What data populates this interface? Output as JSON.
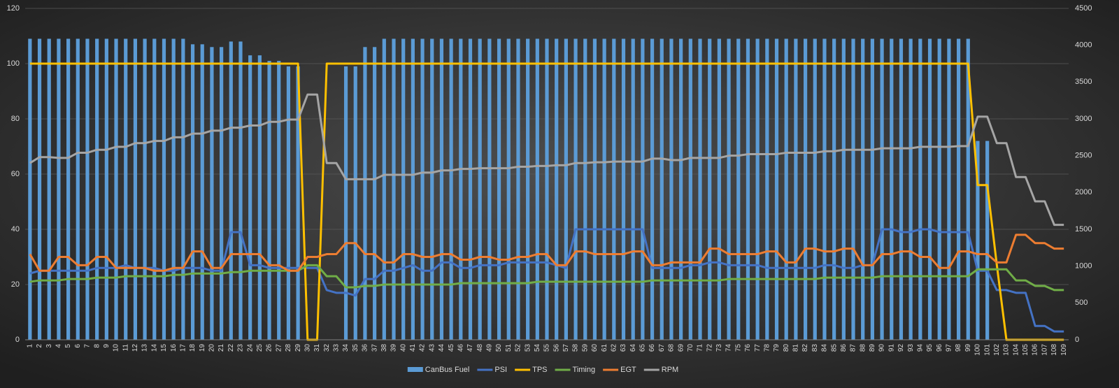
{
  "chart_data": {
    "type": "combo",
    "categories": [
      1,
      2,
      3,
      4,
      5,
      6,
      7,
      8,
      9,
      10,
      11,
      12,
      13,
      14,
      15,
      16,
      17,
      18,
      19,
      20,
      21,
      22,
      23,
      24,
      25,
      26,
      27,
      28,
      29,
      30,
      31,
      32,
      33,
      34,
      35,
      36,
      37,
      38,
      39,
      40,
      41,
      42,
      43,
      44,
      45,
      46,
      47,
      48,
      49,
      50,
      51,
      52,
      53,
      54,
      55,
      56,
      57,
      58,
      59,
      60,
      61,
      62,
      63,
      64,
      65,
      66,
      67,
      68,
      69,
      70,
      71,
      72,
      73,
      74,
      75,
      76,
      77,
      78,
      79,
      80,
      81,
      82,
      83,
      84,
      85,
      86,
      87,
      88,
      89,
      90,
      91,
      92,
      93,
      94,
      95,
      96,
      97,
      98,
      99,
      100,
      101,
      102,
      103,
      104,
      105,
      106,
      107,
      108,
      109
    ],
    "ylim": [
      0,
      120
    ],
    "yticks": [
      0,
      20,
      40,
      60,
      80,
      100,
      120
    ],
    "y2lim": [
      0,
      4500
    ],
    "y2ticks": [
      0,
      500,
      1000,
      1500,
      2000,
      2500,
      3000,
      3500,
      4000,
      4500
    ],
    "grid": true,
    "legend": "bottom",
    "series": [
      {
        "name": "CanBus Fuel",
        "type": "bar",
        "color": "#5b9bd5",
        "values": [
          109,
          109,
          109,
          109,
          109,
          109,
          109,
          109,
          109,
          109,
          109,
          109,
          109,
          109,
          109,
          109,
          109,
          107,
          107,
          106,
          106,
          108,
          108,
          103,
          103,
          101,
          101,
          99,
          99,
          0,
          0,
          0,
          0,
          99,
          99,
          106,
          106,
          109,
          109,
          109,
          109,
          109,
          109,
          109,
          109,
          109,
          109,
          109,
          109,
          109,
          109,
          109,
          109,
          109,
          109,
          109,
          109,
          109,
          109,
          109,
          109,
          109,
          109,
          109,
          109,
          109,
          109,
          109,
          109,
          109,
          109,
          109,
          109,
          109,
          109,
          109,
          109,
          109,
          109,
          109,
          109,
          109,
          109,
          109,
          109,
          109,
          109,
          109,
          109,
          109,
          109,
          109,
          109,
          109,
          109,
          109,
          109,
          109,
          109,
          72,
          72,
          0,
          0,
          0,
          0,
          0,
          0,
          0,
          0
        ]
      },
      {
        "name": "PSI",
        "type": "line",
        "color": "#4472c4",
        "values": [
          24,
          25,
          25,
          25,
          25,
          25,
          25,
          26,
          26,
          26,
          27,
          26,
          26,
          26,
          25,
          25,
          26,
          26,
          26,
          25,
          25,
          39,
          39,
          27,
          27,
          26,
          26,
          26,
          26,
          26,
          26,
          18,
          17,
          17,
          16,
          22,
          22,
          25,
          25,
          26,
          27,
          25,
          25,
          28,
          28,
          26,
          26,
          27,
          27,
          27,
          28,
          28,
          28,
          28,
          28,
          27,
          26,
          40,
          40,
          40,
          40,
          40,
          40,
          40,
          40,
          26,
          26,
          26,
          26,
          27,
          27,
          28,
          28,
          27,
          27,
          27,
          27,
          26,
          26,
          26,
          26,
          26,
          26,
          27,
          27,
          26,
          26,
          27,
          27,
          40,
          40,
          39,
          39,
          40,
          40,
          39,
          39,
          39,
          39,
          25,
          25,
          18,
          18,
          17,
          17,
          5,
          5,
          3,
          3
        ]
      },
      {
        "name": "TPS",
        "type": "line",
        "color": "#ffc000",
        "values": [
          100,
          100,
          100,
          100,
          100,
          100,
          100,
          100,
          100,
          100,
          100,
          100,
          100,
          100,
          100,
          100,
          100,
          100,
          100,
          100,
          100,
          100,
          100,
          100,
          100,
          100,
          100,
          100,
          100,
          0,
          0,
          100,
          100,
          100,
          100,
          100,
          100,
          100,
          100,
          100,
          100,
          100,
          100,
          100,
          100,
          100,
          100,
          100,
          100,
          100,
          100,
          100,
          100,
          100,
          100,
          100,
          100,
          100,
          100,
          100,
          100,
          100,
          100,
          100,
          100,
          100,
          100,
          100,
          100,
          100,
          100,
          100,
          100,
          100,
          100,
          100,
          100,
          100,
          100,
          100,
          100,
          100,
          100,
          100,
          100,
          100,
          100,
          100,
          100,
          100,
          100,
          100,
          100,
          100,
          100,
          100,
          100,
          100,
          100,
          56,
          56,
          27,
          0,
          0,
          0,
          0,
          0,
          0,
          0
        ]
      },
      {
        "name": "Timing",
        "type": "line",
        "color": "#70ad47",
        "values": [
          21,
          21.5,
          21.5,
          21.5,
          22,
          22,
          22,
          22.5,
          22.5,
          22.5,
          23,
          23,
          23,
          23,
          23,
          23.5,
          23.5,
          24,
          24,
          24,
          24,
          24.5,
          24.5,
          25,
          25,
          25,
          25,
          25,
          25,
          27,
          27,
          23,
          23,
          19,
          19,
          19.5,
          19.5,
          20,
          20,
          20,
          20,
          20,
          20,
          20,
          20,
          20.5,
          20.5,
          20.5,
          20.5,
          20.5,
          20.5,
          20.5,
          20.5,
          21,
          21,
          21,
          21,
          21,
          21,
          21,
          21,
          21,
          21,
          21,
          21,
          21.5,
          21.5,
          21.5,
          21.5,
          21.5,
          21.5,
          21.5,
          21.5,
          22,
          22,
          22,
          22,
          22,
          22,
          22,
          22,
          22,
          22,
          22.5,
          22.5,
          22.5,
          22.5,
          22.5,
          22.5,
          23,
          23,
          23,
          23,
          23,
          23,
          23,
          23,
          23,
          23,
          25.5,
          25.5,
          25.5,
          25.5,
          21.5,
          21.5,
          19.5,
          19.5,
          18,
          18
        ]
      },
      {
        "name": "EGT",
        "type": "line",
        "color": "#ed7d31",
        "values": [
          31,
          25,
          25,
          30,
          30,
          27,
          27,
          30,
          30,
          26,
          26,
          26,
          26,
          25,
          25,
          26,
          26,
          32,
          32,
          26,
          26,
          31,
          31,
          31,
          31,
          27,
          27,
          25,
          25,
          30,
          30,
          31,
          31,
          35,
          35,
          31,
          31,
          28,
          28,
          31,
          31,
          30,
          30,
          31,
          31,
          29,
          29,
          30,
          30,
          29,
          29,
          30,
          30,
          31,
          31,
          27,
          27,
          32,
          32,
          31,
          31,
          31,
          31,
          32,
          32,
          27,
          27,
          28,
          28,
          28,
          28,
          33,
          33,
          31,
          31,
          31,
          31,
          32,
          32,
          28,
          28,
          33,
          33,
          32,
          32,
          33,
          33,
          27,
          27,
          31,
          31,
          32,
          32,
          30,
          30,
          26,
          26,
          32,
          32,
          31,
          31,
          28,
          28,
          38,
          38,
          35,
          35,
          33,
          33
        ]
      },
      {
        "name": "RPM",
        "type": "line",
        "axis": "y2",
        "color": "#a5a5a5",
        "values": [
          2400,
          2480,
          2480,
          2470,
          2470,
          2540,
          2540,
          2580,
          2580,
          2620,
          2620,
          2670,
          2670,
          2700,
          2700,
          2750,
          2750,
          2800,
          2800,
          2840,
          2840,
          2880,
          2880,
          2910,
          2910,
          2960,
          2960,
          2990,
          2990,
          3330,
          3330,
          2400,
          2400,
          2180,
          2180,
          2180,
          2180,
          2240,
          2240,
          2240,
          2240,
          2270,
          2270,
          2300,
          2300,
          2320,
          2320,
          2330,
          2330,
          2330,
          2330,
          2350,
          2350,
          2360,
          2360,
          2370,
          2370,
          2400,
          2400,
          2410,
          2410,
          2420,
          2420,
          2420,
          2420,
          2460,
          2460,
          2440,
          2440,
          2470,
          2470,
          2470,
          2470,
          2500,
          2500,
          2520,
          2520,
          2520,
          2520,
          2540,
          2540,
          2540,
          2540,
          2560,
          2560,
          2580,
          2580,
          2580,
          2580,
          2600,
          2600,
          2600,
          2600,
          2620,
          2620,
          2620,
          2620,
          2630,
          2630,
          3030,
          3030,
          2670,
          2670,
          2210,
          2210,
          1880,
          1880,
          1560,
          1560
        ]
      }
    ]
  }
}
